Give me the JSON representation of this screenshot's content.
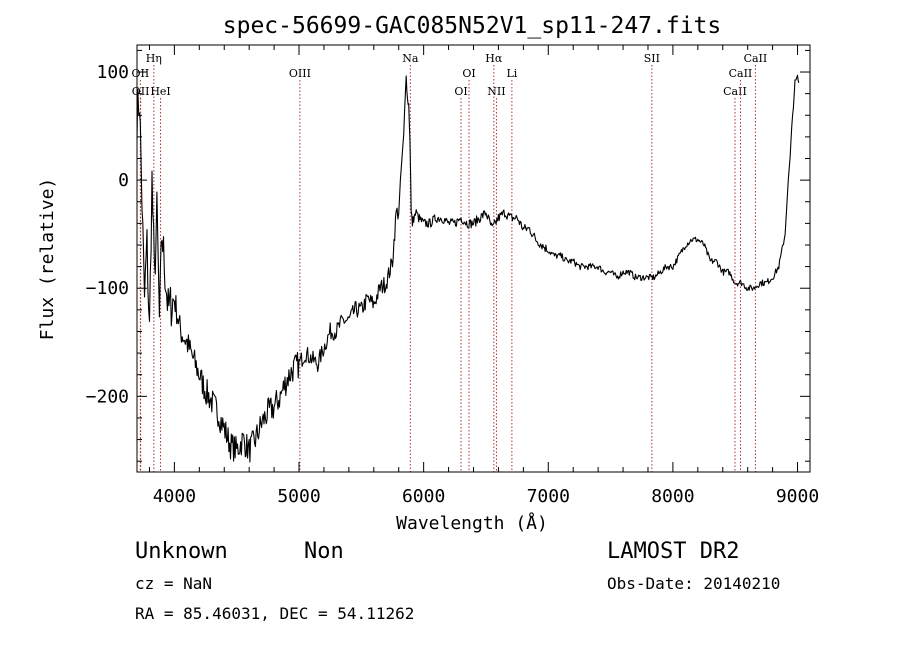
{
  "chart_data": {
    "type": "line",
    "title": "spec-56699-GAC085N52V1_sp11-247.fits",
    "xlabel": "Wavelength (Å)",
    "ylabel": "Flux (relative)",
    "xlim": [
      3700,
      9100
    ],
    "ylim": [
      -270,
      125
    ],
    "xticks": [
      4000,
      5000,
      6000,
      7000,
      8000,
      9000
    ],
    "xtick_labels": [
      "4000",
      "5000",
      "6000",
      "7000",
      "8000",
      "9000"
    ],
    "yticks": [
      100,
      0,
      -100,
      -200
    ],
    "ytick_labels": [
      "100",
      "0",
      "−100",
      "−200"
    ],
    "grid": false,
    "series": [
      {
        "x": [
          3700,
          3720,
          3740,
          3760,
          3780,
          3800,
          3820,
          3840,
          3860,
          3880,
          3900,
          3950,
          4000,
          4050,
          4100,
          4150,
          4200,
          4250,
          4300,
          4350,
          4400,
          4450,
          4500,
          4550,
          4600,
          4650,
          4700,
          4750,
          4800,
          4850,
          4900,
          4950,
          5000,
          5050,
          5100,
          5150,
          5200,
          5250,
          5300,
          5350,
          5400,
          5450,
          5500,
          5550,
          5600,
          5650,
          5700,
          5750,
          5780,
          5800,
          5820,
          5840,
          5860,
          5870,
          5880,
          5890,
          5900,
          5910,
          5920,
          5940,
          5960,
          6000,
          6050,
          6100,
          6150,
          6200,
          6250,
          6300,
          6350,
          6400,
          6450,
          6500,
          6550,
          6600,
          6650,
          6700,
          6750,
          6800,
          6850,
          6900,
          6950,
          7000,
          7050,
          7100,
          7150,
          7200,
          7250,
          7300,
          7350,
          7400,
          7450,
          7500,
          7550,
          7600,
          7650,
          7700,
          7750,
          7800,
          7850,
          7900,
          7950,
          8000,
          8050,
          8100,
          8150,
          8200,
          8250,
          8300,
          8350,
          8400,
          8450,
          8500,
          8550,
          8600,
          8650,
          8700,
          8750,
          8800,
          8850,
          8900,
          8920,
          8940,
          8960,
          8980,
          9000,
          9010
        ],
        "y": [
          60,
          75,
          -20,
          -110,
          -60,
          -140,
          0,
          -90,
          -30,
          -130,
          -50,
          -120,
          -110,
          -140,
          -150,
          -165,
          -180,
          -195,
          -205,
          -215,
          -230,
          -245,
          -250,
          -240,
          -250,
          -240,
          -225,
          -215,
          -210,
          -200,
          -185,
          -175,
          -170,
          -160,
          -165,
          -170,
          -155,
          -140,
          -140,
          -130,
          -130,
          -120,
          -120,
          -110,
          -115,
          -100,
          -95,
          -75,
          -30,
          -30,
          10,
          40,
          100,
          75,
          70,
          40,
          -30,
          -40,
          -35,
          -30,
          -35,
          -40,
          -40,
          -35,
          -35,
          -40,
          -40,
          -35,
          -40,
          -40,
          -35,
          -30,
          -45,
          -35,
          -30,
          -35,
          -35,
          -45,
          -45,
          -55,
          -60,
          -65,
          -70,
          -70,
          -75,
          -75,
          -80,
          -80,
          -80,
          -80,
          -85,
          -85,
          -90,
          -85,
          -85,
          -90,
          -90,
          -90,
          -90,
          -85,
          -80,
          -80,
          -70,
          -60,
          -55,
          -55,
          -60,
          -75,
          -75,
          -85,
          -85,
          -95,
          -95,
          -100,
          -100,
          -95,
          -95,
          -90,
          -80,
          -50,
          -10,
          20,
          60,
          90,
          95,
          90
        ]
      }
    ],
    "lines": [
      {
        "label": "OII",
        "x": 3727,
        "row": 2
      },
      {
        "label": "OII",
        "x": 3729,
        "row": 3
      },
      {
        "label": "Hη",
        "x": 3835,
        "row": 1
      },
      {
        "label": "HeI",
        "x": 3889,
        "row": 3
      },
      {
        "label": "OIII",
        "x": 5007,
        "row": 2
      },
      {
        "label": "Na",
        "x": 5893,
        "row": 1
      },
      {
        "label": "OI",
        "x": 6300,
        "row": 3
      },
      {
        "label": "OI",
        "x": 6364,
        "row": 2
      },
      {
        "label": "Hα",
        "x": 6563,
        "row": 1
      },
      {
        "label": "NII",
        "x": 6584,
        "row": 3
      },
      {
        "label": "Li",
        "x": 6708,
        "row": 2
      },
      {
        "label": "SII",
        "x": 7831,
        "row": 1
      },
      {
        "label": "CaII",
        "x": 8498,
        "row": 3
      },
      {
        "label": "CaII",
        "x": 8542,
        "row": 2
      },
      {
        "label": "CaII",
        "x": 8662,
        "row": 1
      }
    ]
  },
  "info": {
    "class": "Unknown",
    "subclass": "Non",
    "survey": "LAMOST DR2",
    "cz": "cz = NaN",
    "obs_date": "Obs-Date: 20140210",
    "radec": "RA =  85.46031, DEC =  54.11262"
  },
  "colors": {
    "spectrum": "#000000",
    "line_markers": "#b03030",
    "axes": "#000000",
    "background": "#ffffff"
  }
}
